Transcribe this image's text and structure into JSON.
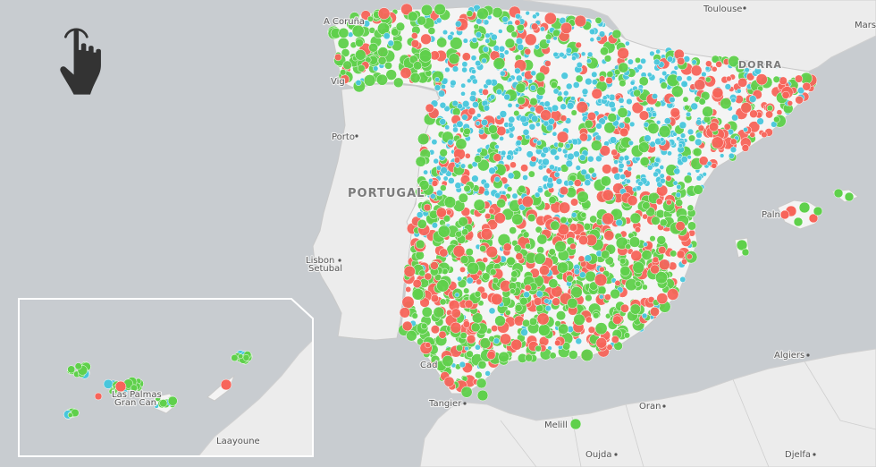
{
  "map": {
    "colors": {
      "water": "#c8ccd0",
      "land": "#ececec",
      "spain": "#f4f4f4",
      "border": "#c9c9c9",
      "green": "#5fd04b",
      "red": "#f7645a",
      "cyan": "#48c6dc",
      "dot_stroke": "#ffffff"
    },
    "labels": {
      "coruna": "A Coruña",
      "vigo": "Vig",
      "porto": "Porto",
      "portugal": "PORTUGAL",
      "lisbon": "Lisbon",
      "setubal": "Setubal",
      "cadiz": "Cad",
      "tangier": "Tangier",
      "melilla": "Melill",
      "oran": "Oran",
      "oujda": "Oujda",
      "algiers": "Algiers",
      "djelfa": "Djelfa",
      "toulouse": "Toulouse",
      "marseille": "Mars",
      "andorra": "DORRA",
      "palma": "Paln",
      "las_palmas_1": "Las Palmas",
      "las_palmas_2": "Gran Can",
      "laayoune": "Laayoune"
    },
    "legend": {
      "categories": [
        "green",
        "red",
        "cyan"
      ]
    },
    "icons": {
      "pointer": "hand-pointer-icon"
    }
  }
}
